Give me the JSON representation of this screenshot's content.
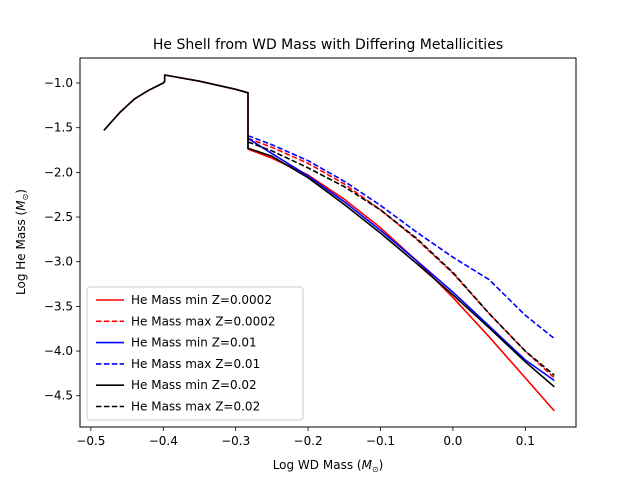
{
  "chart_data": {
    "type": "line",
    "title": "He Shell from WD Mass with Differing Metallicities",
    "xlabel": "Log WD Mass (",
    "xlabel_unit": "M",
    "xlabel_sub": "⊙",
    "xlabel_end": ")",
    "ylabel": "Log He Mass (",
    "ylabel_unit": "M",
    "ylabel_sub": "⊙",
    "ylabel_end": ")",
    "xlim": [
      -0.515,
      0.17
    ],
    "ylim": [
      -4.85,
      -0.72
    ],
    "xticks": [
      {
        "value": -0.5,
        "label": "−0.5"
      },
      {
        "value": -0.4,
        "label": "−0.4"
      },
      {
        "value": -0.3,
        "label": "−0.3"
      },
      {
        "value": -0.2,
        "label": "−0.2"
      },
      {
        "value": -0.1,
        "label": "−0.1"
      },
      {
        "value": 0.0,
        "label": "0.0"
      },
      {
        "value": 0.1,
        "label": "0.1"
      }
    ],
    "yticks": [
      {
        "value": -1.0,
        "label": "−1.0"
      },
      {
        "value": -1.5,
        "label": "−1.5"
      },
      {
        "value": -2.0,
        "label": "−2.0"
      },
      {
        "value": -2.5,
        "label": "−2.5"
      },
      {
        "value": -3.0,
        "label": "−3.0"
      },
      {
        "value": -3.5,
        "label": "−3.5"
      },
      {
        "value": -4.0,
        "label": "−4.0"
      },
      {
        "value": -4.5,
        "label": "−4.5"
      }
    ],
    "grid": false,
    "legend_position": "lower-left",
    "series": [
      {
        "name": "He Mass min Z=0.0002",
        "color": "#ff0000",
        "dash": "solid",
        "x": [
          -0.482,
          -0.46,
          -0.44,
          -0.42,
          -0.4,
          -0.398,
          -0.398,
          -0.35,
          -0.3,
          -0.283,
          -0.283,
          -0.25,
          -0.2,
          -0.15,
          -0.1,
          -0.05,
          0.0,
          0.05,
          0.1,
          0.14
        ],
        "y": [
          -1.53,
          -1.33,
          -1.18,
          -1.08,
          -1.0,
          -0.98,
          -0.91,
          -0.98,
          -1.07,
          -1.11,
          -1.74,
          -1.84,
          -2.03,
          -2.3,
          -2.62,
          -2.99,
          -3.4,
          -3.84,
          -4.3,
          -4.67
        ]
      },
      {
        "name": "He Mass max Z=0.0002",
        "color": "#ff0000",
        "dash": "dashed",
        "x": [
          -0.283,
          -0.25,
          -0.2,
          -0.15,
          -0.1,
          -0.05,
          0.0,
          0.05,
          0.1,
          0.14
        ],
        "y": [
          -1.62,
          -1.72,
          -1.9,
          -2.13,
          -2.42,
          -2.75,
          -3.13,
          -3.58,
          -4.0,
          -4.3
        ]
      },
      {
        "name": "He Mass min Z=0.01",
        "color": "#0000ff",
        "dash": "solid",
        "x": [
          -0.283,
          -0.25,
          -0.2,
          -0.15,
          -0.1,
          -0.05,
          0.0,
          0.05,
          0.1,
          0.14
        ],
        "y": [
          -1.62,
          -1.79,
          -2.04,
          -2.33,
          -2.65,
          -2.99,
          -3.34,
          -3.72,
          -4.1,
          -4.33
        ]
      },
      {
        "name": "He Mass max Z=0.01",
        "color": "#0000ff",
        "dash": "dashed",
        "x": [
          -0.283,
          -0.25,
          -0.2,
          -0.15,
          -0.1,
          -0.05,
          0.0,
          0.05,
          0.1,
          0.14
        ],
        "y": [
          -1.59,
          -1.69,
          -1.87,
          -2.1,
          -2.37,
          -2.67,
          -2.95,
          -3.2,
          -3.6,
          -3.86
        ]
      },
      {
        "name": "He Mass min Z=0.02",
        "color": "#000000",
        "dash": "solid",
        "x": [
          -0.482,
          -0.46,
          -0.44,
          -0.42,
          -0.4,
          -0.398,
          -0.398,
          -0.35,
          -0.3,
          -0.283,
          -0.283,
          -0.25,
          -0.2,
          -0.15,
          -0.1,
          -0.05,
          0.0,
          0.05,
          0.1,
          0.14
        ],
        "y": [
          -1.53,
          -1.33,
          -1.18,
          -1.08,
          -1.0,
          -0.98,
          -0.91,
          -0.98,
          -1.07,
          -1.11,
          -1.73,
          -1.82,
          -2.06,
          -2.36,
          -2.68,
          -3.02,
          -3.37,
          -3.74,
          -4.12,
          -4.4
        ]
      },
      {
        "name": "He Mass max Z=0.02",
        "color": "#000000",
        "dash": "dashed",
        "x": [
          -0.283,
          -0.25,
          -0.2,
          -0.15,
          -0.1,
          -0.05,
          0.0,
          0.05,
          0.1,
          0.14
        ],
        "y": [
          -1.66,
          -1.76,
          -1.95,
          -2.16,
          -2.42,
          -2.74,
          -3.12,
          -3.58,
          -4.0,
          -4.27
        ]
      }
    ]
  }
}
